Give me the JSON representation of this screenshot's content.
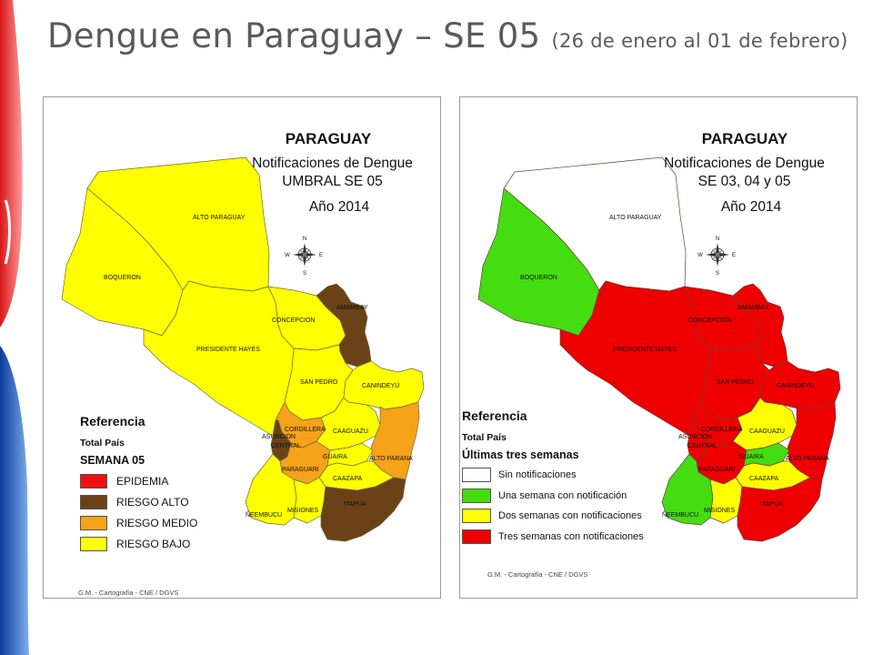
{
  "slide": {
    "title_main": "Dengue en Paraguay – SE 05",
    "title_sub": "(26 de enero al 01 de febrero)"
  },
  "colors": {
    "epidemia": "#ee1111",
    "riesgo_alto": "#6b4218",
    "riesgo_medio": "#f6a21a",
    "riesgo_bajo": "#ffff00",
    "sin_notif": "#ffffff",
    "una_semana": "#44dd11",
    "dos_semanas": "#ffff00",
    "tres_semanas": "#ee0000"
  },
  "map_left": {
    "country": "PARAGUAY",
    "subtitle1": "Notificaciones de Dengue",
    "subtitle2": "UMBRAL SE 05",
    "year": "Año 2014",
    "compass": {
      "n": "N",
      "s": "S",
      "e": "E",
      "w": "W"
    },
    "departments": {
      "alto_paraguay": "ALTO PARAGUAY",
      "boqueron": "BOQUERON",
      "presidente_hayes": "PRESIDENTE HAYES",
      "concepcion": "CONCEPCION",
      "amambay": "AMAMBAY",
      "san_pedro": "SAN PEDRO",
      "canindeyu": "CANINDEYU",
      "cordillera": "CORDILLERA",
      "asuncion": "ASUNCION",
      "central": "CENTRAL",
      "caaguazu": "CAAGUAZU",
      "guaira": "GUAIRA",
      "alto_parana": "ALTO PARANA",
      "paraguari": "PARAGUARI",
      "caazapa": "CAAZAPA",
      "misiones": "MISIONES",
      "neembucu": "ÑEEMBUCU",
      "itapua": "ITAPUA"
    },
    "legend": {
      "heading": "Referencia",
      "scope": "Total País",
      "period": "SEMANA 05",
      "items": [
        {
          "label": "EPIDEMIA",
          "color": "#ee1111"
        },
        {
          "label": "RIESGO ALTO",
          "color": "#6b4218"
        },
        {
          "label": "RIESGO MEDIO",
          "color": "#f6a21a"
        },
        {
          "label": "RIESGO BAJO",
          "color": "#ffff00"
        }
      ]
    },
    "credit": "G.M. - Cartografía - CNE / DGVS"
  },
  "map_right": {
    "country": "PARAGUAY",
    "subtitle1": "Notificaciones de Dengue",
    "subtitle2": "SE 03, 04 y 05",
    "year": "Año 2014",
    "compass": {
      "n": "N",
      "s": "S",
      "e": "E",
      "w": "W"
    },
    "departments": {
      "alto_paraguay": "ALTO PARAGUAY",
      "boqueron": "BOQUERON",
      "presidente_hayes": "PRESIDENTE HAYES",
      "concepcion": "CONCEPCION",
      "amambay": "AMAMBAY",
      "san_pedro": "SAN PEDRO",
      "canindeyu": "CANINDEYU",
      "cordillera": "CORDILLERA",
      "asuncion": "ASUNCION",
      "central": "CENTRAL",
      "caaguazu": "CAAGUAZU",
      "guaira": "GUAIRA",
      "alto_parana": "ALTO PARANA",
      "paraguari": "PARAGUARI",
      "caazapa": "CAAZAPA",
      "misiones": "MISIONES",
      "neembucu": "ÑEEMBUCU",
      "itapua": "ITAPUA"
    },
    "legend": {
      "heading": "Referencia",
      "scope": "Total País",
      "period": "Últimas tres semanas",
      "items": [
        {
          "label": "Sin notificaciones",
          "color": "#ffffff"
        },
        {
          "label": "Una semana con notificación",
          "color": "#44dd11"
        },
        {
          "label": "Dos semanas con notificaciones",
          "color": "#ffff00"
        },
        {
          "label": "Tres semanas con notificaciones",
          "color": "#ee0000"
        }
      ]
    },
    "credit": "G.M. - Cartografía - CNE / DGVS"
  }
}
